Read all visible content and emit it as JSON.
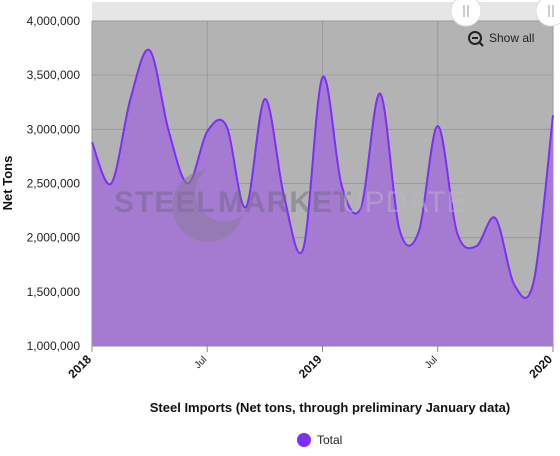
{
  "chart_data": {
    "type": "area",
    "title": "",
    "xlabel": "Steel Imports (Net tons, through preliminary January data)",
    "ylabel": "Net Tons",
    "x_range": [
      "2018-01",
      "2020-01"
    ],
    "ylim": [
      1000000,
      4000000
    ],
    "y_ticks": [
      {
        "value": 1000000,
        "label": "1,000,000"
      },
      {
        "value": 1500000,
        "label": "1,500,000"
      },
      {
        "value": 2000000,
        "label": "2,000,000"
      },
      {
        "value": 2500000,
        "label": "2,500,000"
      },
      {
        "value": 3000000,
        "label": "3,000,000"
      },
      {
        "value": 3500000,
        "label": "3,500,000"
      },
      {
        "value": 4000000,
        "label": "4,000,000"
      }
    ],
    "x_ticks": [
      {
        "x": "2018-01",
        "label": "2018",
        "major": true
      },
      {
        "x": "2018-07",
        "label": "Jul",
        "major": false
      },
      {
        "x": "2019-01",
        "label": "2019",
        "major": true
      },
      {
        "x": "2019-07",
        "label": "Jul",
        "major": false
      },
      {
        "x": "2020-01",
        "label": "2020",
        "major": true
      }
    ],
    "grid": true,
    "legend_position": "bottom-center",
    "series": [
      {
        "name": "Total",
        "color": "#7b2ff7",
        "fill_color": "#a47bd0",
        "points": [
          {
            "x": "2018-01",
            "y": 2880000
          },
          {
            "x": "2018-02",
            "y": 2500000
          },
          {
            "x": "2018-03",
            "y": 3280000
          },
          {
            "x": "2018-04",
            "y": 3730000
          },
          {
            "x": "2018-05",
            "y": 2980000
          },
          {
            "x": "2018-06",
            "y": 2500000
          },
          {
            "x": "2018-07",
            "y": 2980000
          },
          {
            "x": "2018-08",
            "y": 3030000
          },
          {
            "x": "2018-09",
            "y": 2280000
          },
          {
            "x": "2018-10",
            "y": 3280000
          },
          {
            "x": "2018-11",
            "y": 2380000
          },
          {
            "x": "2018-12",
            "y": 1900000
          },
          {
            "x": "2019-01",
            "y": 3480000
          },
          {
            "x": "2019-02",
            "y": 2480000
          },
          {
            "x": "2019-03",
            "y": 2280000
          },
          {
            "x": "2019-04",
            "y": 3330000
          },
          {
            "x": "2019-05",
            "y": 2080000
          },
          {
            "x": "2019-06",
            "y": 2050000
          },
          {
            "x": "2019-07",
            "y": 3030000
          },
          {
            "x": "2019-08",
            "y": 2050000
          },
          {
            "x": "2019-09",
            "y": 1920000
          },
          {
            "x": "2019-10",
            "y": 2180000
          },
          {
            "x": "2019-11",
            "y": 1560000
          },
          {
            "x": "2019-12",
            "y": 1600000
          },
          {
            "x": "2020-01",
            "y": 3130000
          }
        ]
      }
    ]
  },
  "controls": {
    "show_all_label": "Show all",
    "zoom_icon": "zoom-out-icon",
    "handle_icon": "grip-lines-icon"
  },
  "watermark": {
    "word1": "STEEL",
    "word2": "MARKET",
    "word3": "UPDATE"
  },
  "colors": {
    "plot_background": "#b3b3b3",
    "navigator_background": "#e6e6e6",
    "series_line": "#7b2ff7",
    "series_fill": "#a47bd0"
  }
}
